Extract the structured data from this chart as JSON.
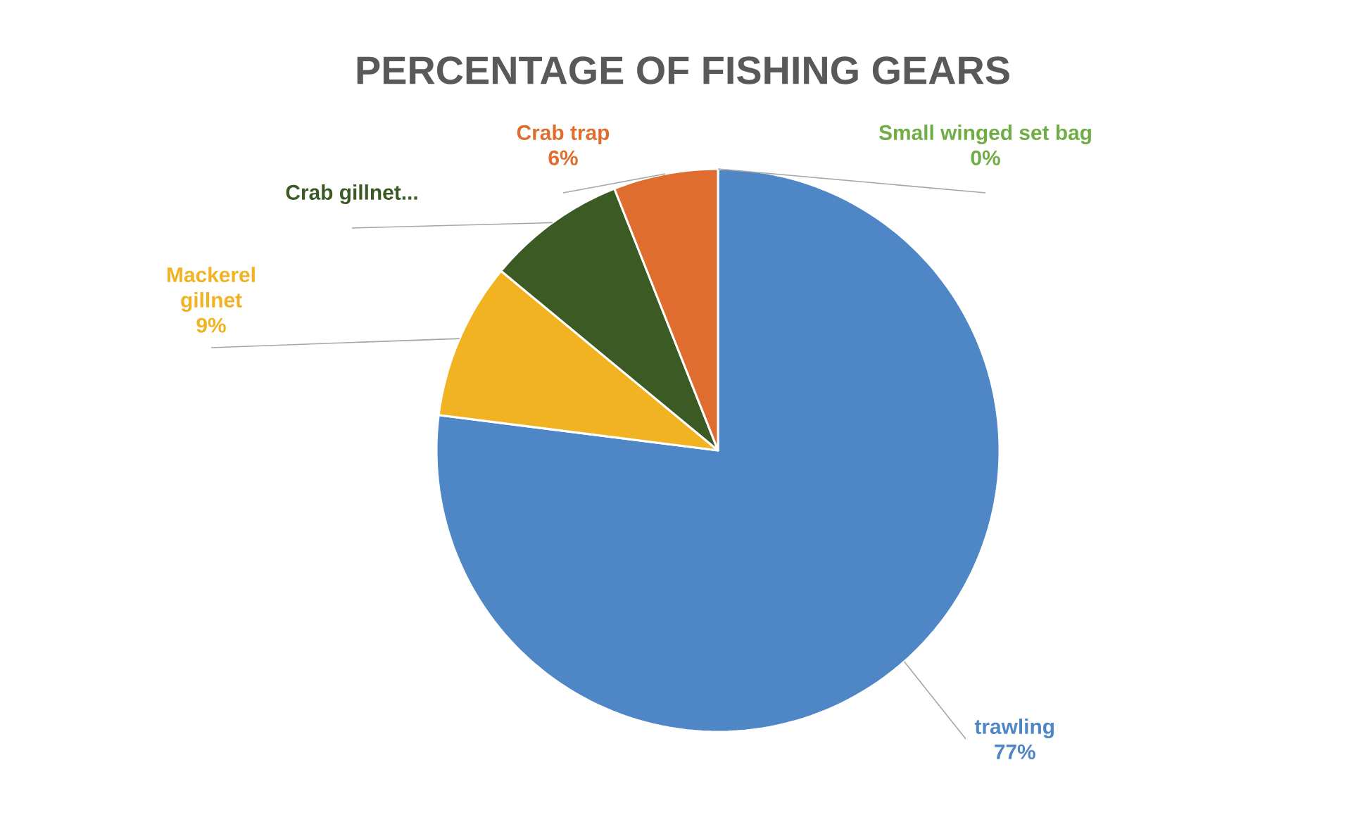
{
  "chart_data": {
    "type": "pie",
    "title": "PERCENTAGE OF FISHING GEARS",
    "categories": [
      "trawling",
      "Mackerel gillnet",
      "Crab gillnet...",
      "Crab trap",
      "Small winged set bag"
    ],
    "values": [
      77,
      9,
      8,
      6,
      0
    ],
    "colors": [
      "#4f86c6",
      "#f2b323",
      "#3c5a23",
      "#df6d2f",
      "#70ad47"
    ],
    "value_labels": [
      "77%",
      "9%",
      null,
      "6%",
      "0%"
    ]
  }
}
